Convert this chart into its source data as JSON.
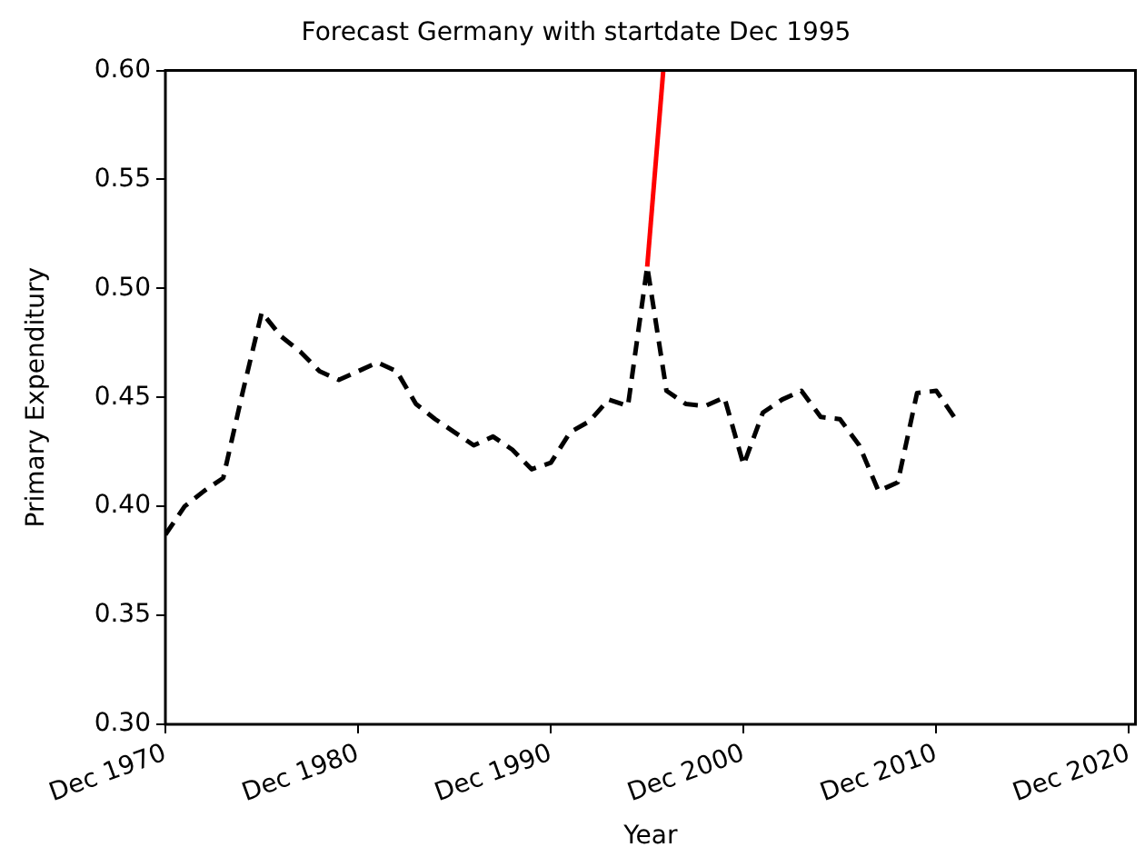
{
  "chart_data": {
    "type": "line",
    "title": "Forecast Germany with startdate Dec 1995",
    "xlabel": "Year",
    "ylabel": "Primary Expenditury",
    "xlim": [
      "1970-12",
      "2021-04"
    ],
    "xticks": [
      {
        "value": "1970-12",
        "label": "Dec 1970"
      },
      {
        "value": "1980-12",
        "label": "Dec 1980"
      },
      {
        "value": "1990-12",
        "label": "Dec 1990"
      },
      {
        "value": "2000-12",
        "label": "Dec 2000"
      },
      {
        "value": "2010-12",
        "label": "Dec 2010"
      },
      {
        "value": "2020-12",
        "label": "Dec 2020"
      }
    ],
    "ylim": [
      0.3,
      0.6
    ],
    "yticks": [
      {
        "value": 0.3,
        "label": "0.30"
      },
      {
        "value": 0.35,
        "label": "0.35"
      },
      {
        "value": 0.4,
        "label": "0.40"
      },
      {
        "value": 0.45,
        "label": "0.45"
      },
      {
        "value": 0.5,
        "label": "0.50"
      },
      {
        "value": 0.55,
        "label": "0.55"
      },
      {
        "value": 0.6,
        "label": "0.60"
      }
    ],
    "grid": false,
    "legend": false,
    "marker": "none",
    "series": [
      {
        "color": "#000000",
        "line_style": "dashed",
        "x": [
          "1970-12",
          "1971-12",
          "1972-12",
          "1973-12",
          "1974-12",
          "1975-12",
          "1976-12",
          "1977-12",
          "1978-12",
          "1979-12",
          "1980-12",
          "1981-12",
          "1982-12",
          "1983-12",
          "1984-12",
          "1985-12",
          "1986-12",
          "1987-12",
          "1988-12",
          "1989-12",
          "1990-12",
          "1991-12",
          "1992-12",
          "1993-12",
          "1994-12",
          "1995-12",
          "1996-12",
          "1997-12",
          "1998-12",
          "1999-12",
          "2000-12",
          "2001-12",
          "2002-12",
          "2003-12",
          "2004-12",
          "2005-12",
          "2006-12",
          "2007-12",
          "2008-12",
          "2009-12",
          "2010-12",
          "2011-12"
        ],
        "values": [
          0.387,
          0.4,
          0.407,
          0.413,
          0.452,
          0.489,
          0.478,
          0.471,
          0.462,
          0.458,
          0.462,
          0.466,
          0.462,
          0.447,
          0.44,
          0.434,
          0.428,
          0.432,
          0.426,
          0.417,
          0.42,
          0.434,
          0.439,
          0.449,
          0.446,
          0.51,
          0.453,
          0.447,
          0.446,
          0.45,
          0.419,
          0.443,
          0.449,
          0.453,
          0.441,
          0.44,
          0.428,
          0.407,
          0.411,
          0.452,
          0.453,
          0.44
        ]
      },
      {
        "color": "#ff0000",
        "line_style": "solid",
        "x": [
          "1995-12",
          "1996-10"
        ],
        "values": [
          0.51,
          0.6
        ]
      }
    ]
  }
}
